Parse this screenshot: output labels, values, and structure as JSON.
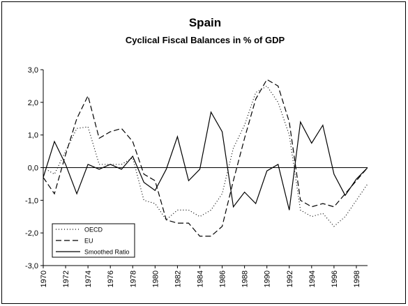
{
  "chart_data": {
    "type": "line",
    "title": "Spain",
    "subtitle": "Cyclical Fiscal Balances in % of GDP",
    "x": [
      1970,
      1971,
      1972,
      1973,
      1974,
      1975,
      1976,
      1977,
      1978,
      1979,
      1980,
      1981,
      1982,
      1983,
      1984,
      1985,
      1986,
      1987,
      1988,
      1989,
      1990,
      1991,
      1992,
      1993,
      1994,
      1995,
      1996,
      1997,
      1998,
      1999
    ],
    "series": [
      {
        "name": "OECD",
        "color": "#000000",
        "line_style": "dotted",
        "values": [
          0.0,
          -0.2,
          0.5,
          1.2,
          1.25,
          0.1,
          0.1,
          0.1,
          0.3,
          -1.0,
          -1.1,
          -1.6,
          -1.3,
          -1.3,
          -1.5,
          -1.3,
          -0.8,
          0.6,
          1.3,
          2.3,
          2.5,
          2.0,
          1.0,
          -1.3,
          -1.5,
          -1.4,
          -1.8,
          -1.5,
          -1.0,
          -0.5
        ]
      },
      {
        "name": "EU",
        "color": "#000000",
        "line_style": "dashed",
        "values": [
          -0.3,
          -0.8,
          0.4,
          1.5,
          2.2,
          0.9,
          1.1,
          1.2,
          0.8,
          -0.2,
          -0.4,
          -1.6,
          -1.7,
          -1.7,
          -2.1,
          -2.1,
          -1.8,
          -0.4,
          0.9,
          2.1,
          2.7,
          2.5,
          1.4,
          -1.0,
          -1.2,
          -1.1,
          -1.2,
          -0.8,
          -0.4,
          0.0
        ]
      },
      {
        "name": "Smoothed Ratio",
        "color": "#000000",
        "line_style": "solid",
        "values": [
          -0.3,
          0.8,
          0.1,
          -0.8,
          0.1,
          -0.05,
          0.1,
          -0.05,
          0.35,
          -0.45,
          -0.7,
          -0.05,
          0.95,
          -0.4,
          -0.05,
          1.7,
          1.1,
          -1.2,
          -0.75,
          -1.1,
          -0.1,
          0.1,
          -1.3,
          1.4,
          0.75,
          1.3,
          -0.2,
          -0.85,
          -0.35,
          0.0
        ]
      }
    ],
    "xlim": [
      1970,
      1999
    ],
    "xticks": [
      1970,
      1972,
      1974,
      1976,
      1978,
      1980,
      1982,
      1984,
      1986,
      1988,
      1990,
      1992,
      1994,
      1996,
      1998
    ],
    "ylim": [
      -3,
      3
    ],
    "yticks": [
      {
        "value": -3,
        "label": "-3,0"
      },
      {
        "value": -2,
        "label": "-2,0"
      },
      {
        "value": -1,
        "label": "-1,0"
      },
      {
        "value": 0,
        "label": "0,0"
      },
      {
        "value": 1,
        "label": "1,0"
      },
      {
        "value": 2,
        "label": "2,0"
      },
      {
        "value": 3,
        "label": "3,0"
      }
    ],
    "legend": "lower left",
    "grid": false
  }
}
